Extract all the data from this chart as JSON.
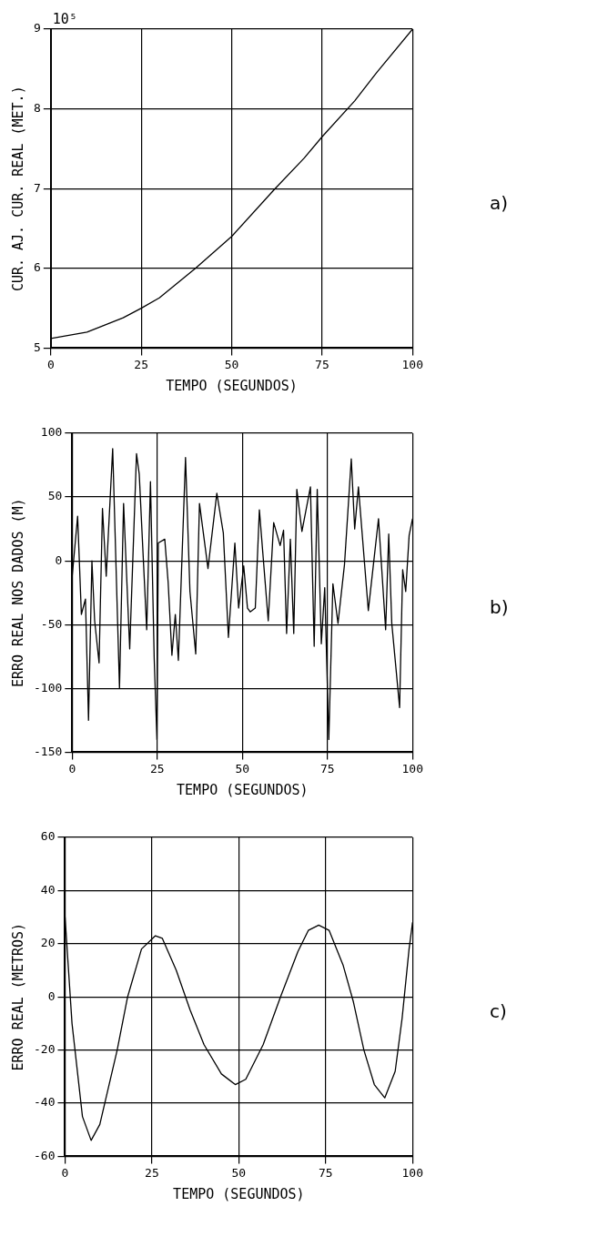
{
  "chart_data": [
    {
      "type": "line",
      "ylabel": "CUR. AJ. CUR. REAL (MET.)",
      "xlabel": "TEMPO (SEGUNDOS)",
      "annotations": [
        "10⁵",
        "a)"
      ],
      "xlim": [
        0,
        100
      ],
      "xticks": [
        0,
        25,
        50,
        75,
        100
      ],
      "ylim": [
        5,
        9
      ],
      "yticks": [
        5,
        6,
        7,
        8,
        9
      ],
      "grid": true,
      "color": "#000000",
      "x": [
        0,
        10,
        20,
        25,
        30,
        40,
        50,
        62,
        70,
        75,
        84,
        90,
        100
      ],
      "values": [
        5.12,
        5.2,
        5.38,
        5.5,
        5.63,
        6.0,
        6.4,
        7.0,
        7.38,
        7.65,
        8.1,
        8.45,
        9.0
      ]
    },
    {
      "type": "line",
      "ylabel": "ERRO REAL NOS DADOS (M)",
      "xlabel": "TEMPO (SEGUNDOS)",
      "annotations": [
        "b)"
      ],
      "xlim": [
        0,
        100
      ],
      "xticks": [
        0,
        25,
        50,
        75,
        100
      ],
      "ylim": [
        -150,
        100
      ],
      "yticks": [
        -150,
        -100,
        -50,
        0,
        50,
        100
      ],
      "grid": true,
      "color": "#000000",
      "x": [
        0,
        1.6,
        2.7,
        3.9,
        4.8,
        5.8,
        6.6,
        7.9,
        8.9,
        10,
        11.9,
        13.9,
        15.1,
        16.9,
        18.9,
        19.7,
        21.9,
        23,
        24.1,
        24.9,
        25.3,
        27.2,
        28.2,
        29.3,
        30.3,
        31.2,
        33.3,
        34.6,
        36.3,
        37.4,
        39.9,
        42.5,
        44.4,
        45.9,
        47.8,
        48.9,
        50.4,
        51.5,
        52.3,
        53.8,
        55,
        57.6,
        59.2,
        61.1,
        62.1,
        63,
        64.1,
        65.1,
        66,
        67.5,
        70,
        71.1,
        72,
        73.2,
        74.2,
        75.4,
        76.6,
        78.1,
        80,
        82,
        83,
        84.1,
        87,
        90,
        92.1,
        93,
        93.9,
        96.2,
        97.1,
        98,
        99,
        100
      ],
      "values": [
        -12,
        35,
        -42,
        -30,
        -125,
        0,
        -47,
        -80,
        41,
        -12,
        88,
        -100,
        45,
        -69,
        84,
        68,
        -54,
        62,
        -77,
        -140,
        14,
        17,
        -17,
        -74,
        -42,
        -78,
        81,
        -24,
        -73,
        45,
        -6,
        53,
        22,
        -60,
        14,
        -37,
        -4,
        -37,
        -40,
        -37,
        40,
        -47,
        30,
        12,
        24,
        -57,
        17,
        -57,
        56,
        23,
        58,
        -67,
        56,
        -65,
        -21,
        -140,
        -18,
        -49,
        -3,
        80,
        25,
        58,
        -39,
        33,
        -54,
        21,
        -49,
        -115,
        -7,
        -24,
        20,
        33
      ]
    },
    {
      "type": "line",
      "ylabel": "ERRO REAL (METROS)",
      "xlabel": "TEMPO (SEGUNDOS)",
      "annotations": [
        "c)"
      ],
      "xlim": [
        0,
        100
      ],
      "xticks": [
        0,
        25,
        50,
        75,
        100
      ],
      "ylim": [
        -60,
        60
      ],
      "yticks": [
        -60,
        -40,
        -20,
        0,
        20,
        40,
        60
      ],
      "grid": true,
      "color": "#000000",
      "x": [
        0,
        2,
        5,
        7.5,
        10,
        15,
        18,
        22,
        26,
        28,
        32,
        36,
        40,
        45,
        49,
        52,
        57,
        62,
        67,
        70,
        73,
        76,
        80,
        83,
        86,
        89,
        92,
        95,
        97,
        99,
        100
      ],
      "values": [
        30,
        -10,
        -45,
        -54,
        -48,
        -20,
        0,
        18,
        23,
        22,
        10,
        -5,
        -18,
        -29,
        -33,
        -31,
        -18,
        0,
        17,
        25,
        27,
        25,
        12,
        -2,
        -20,
        -33,
        -38,
        -28,
        -8,
        18,
        28
      ]
    }
  ]
}
